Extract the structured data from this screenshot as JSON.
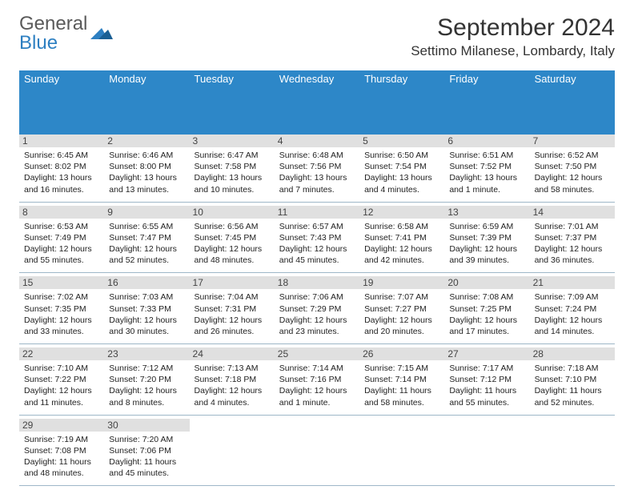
{
  "brand": {
    "part1": "General",
    "part2": "Blue"
  },
  "title": "September 2024",
  "location": "Settimo Milanese, Lombardy, Italy",
  "colors": {
    "header_bg": "#2d87c8",
    "header_text": "#ffffff",
    "daynum_bg": "#e0e0e0",
    "row_border": "#9eb7c8",
    "logo_gray": "#5a5a5a",
    "logo_blue": "#2d7fc1"
  },
  "day_names": [
    "Sunday",
    "Monday",
    "Tuesday",
    "Wednesday",
    "Thursday",
    "Friday",
    "Saturday"
  ],
  "weeks": [
    [
      {
        "n": "1",
        "sr": "Sunrise: 6:45 AM",
        "ss": "Sunset: 8:02 PM",
        "dl": "Daylight: 13 hours and 16 minutes."
      },
      {
        "n": "2",
        "sr": "Sunrise: 6:46 AM",
        "ss": "Sunset: 8:00 PM",
        "dl": "Daylight: 13 hours and 13 minutes."
      },
      {
        "n": "3",
        "sr": "Sunrise: 6:47 AM",
        "ss": "Sunset: 7:58 PM",
        "dl": "Daylight: 13 hours and 10 minutes."
      },
      {
        "n": "4",
        "sr": "Sunrise: 6:48 AM",
        "ss": "Sunset: 7:56 PM",
        "dl": "Daylight: 13 hours and 7 minutes."
      },
      {
        "n": "5",
        "sr": "Sunrise: 6:50 AM",
        "ss": "Sunset: 7:54 PM",
        "dl": "Daylight: 13 hours and 4 minutes."
      },
      {
        "n": "6",
        "sr": "Sunrise: 6:51 AM",
        "ss": "Sunset: 7:52 PM",
        "dl": "Daylight: 13 hours and 1 minute."
      },
      {
        "n": "7",
        "sr": "Sunrise: 6:52 AM",
        "ss": "Sunset: 7:50 PM",
        "dl": "Daylight: 12 hours and 58 minutes."
      }
    ],
    [
      {
        "n": "8",
        "sr": "Sunrise: 6:53 AM",
        "ss": "Sunset: 7:49 PM",
        "dl": "Daylight: 12 hours and 55 minutes."
      },
      {
        "n": "9",
        "sr": "Sunrise: 6:55 AM",
        "ss": "Sunset: 7:47 PM",
        "dl": "Daylight: 12 hours and 52 minutes."
      },
      {
        "n": "10",
        "sr": "Sunrise: 6:56 AM",
        "ss": "Sunset: 7:45 PM",
        "dl": "Daylight: 12 hours and 48 minutes."
      },
      {
        "n": "11",
        "sr": "Sunrise: 6:57 AM",
        "ss": "Sunset: 7:43 PM",
        "dl": "Daylight: 12 hours and 45 minutes."
      },
      {
        "n": "12",
        "sr": "Sunrise: 6:58 AM",
        "ss": "Sunset: 7:41 PM",
        "dl": "Daylight: 12 hours and 42 minutes."
      },
      {
        "n": "13",
        "sr": "Sunrise: 6:59 AM",
        "ss": "Sunset: 7:39 PM",
        "dl": "Daylight: 12 hours and 39 minutes."
      },
      {
        "n": "14",
        "sr": "Sunrise: 7:01 AM",
        "ss": "Sunset: 7:37 PM",
        "dl": "Daylight: 12 hours and 36 minutes."
      }
    ],
    [
      {
        "n": "15",
        "sr": "Sunrise: 7:02 AM",
        "ss": "Sunset: 7:35 PM",
        "dl": "Daylight: 12 hours and 33 minutes."
      },
      {
        "n": "16",
        "sr": "Sunrise: 7:03 AM",
        "ss": "Sunset: 7:33 PM",
        "dl": "Daylight: 12 hours and 30 minutes."
      },
      {
        "n": "17",
        "sr": "Sunrise: 7:04 AM",
        "ss": "Sunset: 7:31 PM",
        "dl": "Daylight: 12 hours and 26 minutes."
      },
      {
        "n": "18",
        "sr": "Sunrise: 7:06 AM",
        "ss": "Sunset: 7:29 PM",
        "dl": "Daylight: 12 hours and 23 minutes."
      },
      {
        "n": "19",
        "sr": "Sunrise: 7:07 AM",
        "ss": "Sunset: 7:27 PM",
        "dl": "Daylight: 12 hours and 20 minutes."
      },
      {
        "n": "20",
        "sr": "Sunrise: 7:08 AM",
        "ss": "Sunset: 7:25 PM",
        "dl": "Daylight: 12 hours and 17 minutes."
      },
      {
        "n": "21",
        "sr": "Sunrise: 7:09 AM",
        "ss": "Sunset: 7:24 PM",
        "dl": "Daylight: 12 hours and 14 minutes."
      }
    ],
    [
      {
        "n": "22",
        "sr": "Sunrise: 7:10 AM",
        "ss": "Sunset: 7:22 PM",
        "dl": "Daylight: 12 hours and 11 minutes."
      },
      {
        "n": "23",
        "sr": "Sunrise: 7:12 AM",
        "ss": "Sunset: 7:20 PM",
        "dl": "Daylight: 12 hours and 8 minutes."
      },
      {
        "n": "24",
        "sr": "Sunrise: 7:13 AM",
        "ss": "Sunset: 7:18 PM",
        "dl": "Daylight: 12 hours and 4 minutes."
      },
      {
        "n": "25",
        "sr": "Sunrise: 7:14 AM",
        "ss": "Sunset: 7:16 PM",
        "dl": "Daylight: 12 hours and 1 minute."
      },
      {
        "n": "26",
        "sr": "Sunrise: 7:15 AM",
        "ss": "Sunset: 7:14 PM",
        "dl": "Daylight: 11 hours and 58 minutes."
      },
      {
        "n": "27",
        "sr": "Sunrise: 7:17 AM",
        "ss": "Sunset: 7:12 PM",
        "dl": "Daylight: 11 hours and 55 minutes."
      },
      {
        "n": "28",
        "sr": "Sunrise: 7:18 AM",
        "ss": "Sunset: 7:10 PM",
        "dl": "Daylight: 11 hours and 52 minutes."
      }
    ],
    [
      {
        "n": "29",
        "sr": "Sunrise: 7:19 AM",
        "ss": "Sunset: 7:08 PM",
        "dl": "Daylight: 11 hours and 48 minutes."
      },
      {
        "n": "30",
        "sr": "Sunrise: 7:20 AM",
        "ss": "Sunset: 7:06 PM",
        "dl": "Daylight: 11 hours and 45 minutes."
      },
      null,
      null,
      null,
      null,
      null
    ]
  ]
}
